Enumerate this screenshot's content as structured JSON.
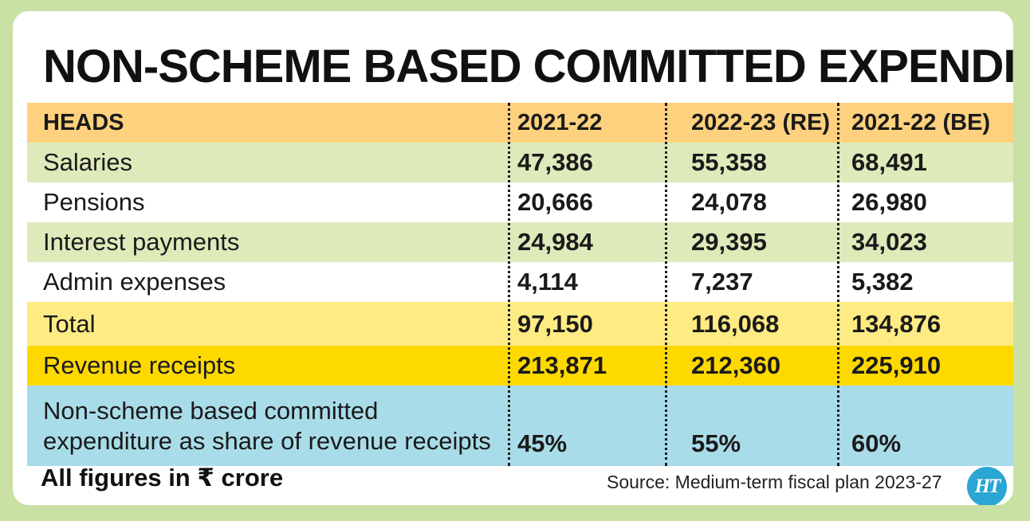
{
  "chart_data": {
    "type": "table",
    "title": "NON-SCHEME BASED COMMITTED EXPENDITURE",
    "columns": [
      "HEADS",
      "2021-22",
      "2022-23 (RE)",
      "2021-22 (BE)"
    ],
    "rows": [
      {
        "head": "Salaries",
        "values": [
          "47,386",
          "55,358",
          "68,491"
        ]
      },
      {
        "head": "Pensions",
        "values": [
          "20,666",
          "24,078",
          "26,980"
        ]
      },
      {
        "head": "Interest payments",
        "values": [
          "24,984",
          "29,395",
          "34,023"
        ]
      },
      {
        "head": "Admin expenses",
        "values": [
          "4,114",
          "7,237",
          "5,382"
        ]
      },
      {
        "head": "Total",
        "values": [
          "97,150",
          "116,068",
          "134,876"
        ]
      },
      {
        "head": "Revenue receipts",
        "values": [
          "213,871",
          "212,360",
          "225,910"
        ]
      },
      {
        "head_lines": [
          "Non-scheme based committed",
          "expenditure as share of revenue receipts"
        ],
        "values": [
          "45%",
          "55%",
          "60%"
        ]
      }
    ],
    "note": "All figures in ₹ crore",
    "source": "Source: Medium-term fiscal plan 2023-27"
  },
  "logo": {
    "text": "HT"
  },
  "colors": {
    "background": "#c9e1a3",
    "header_row": "#fdd17e",
    "green_row": "#deeaba",
    "white_row": "#ffffff",
    "total_row": "#feeb83",
    "revenue_row": "#fed900",
    "share_row": "#a9dce9",
    "logo": "#29a6d3"
  }
}
